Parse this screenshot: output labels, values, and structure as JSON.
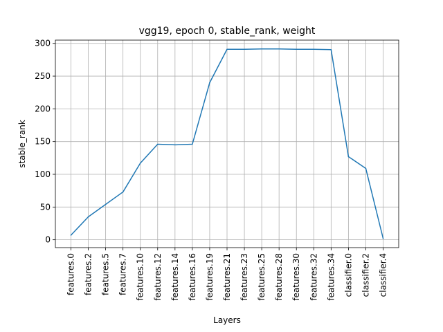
{
  "chart_data": {
    "type": "line",
    "title": "vgg19, epoch 0, stable_rank, weight",
    "xlabel": "Layers",
    "ylabel": "stable_rank",
    "categories": [
      "features.0",
      "features.2",
      "features.5",
      "features.7",
      "features.10",
      "features.12",
      "features.14",
      "features.16",
      "features.19",
      "features.21",
      "features.23",
      "features.25",
      "features.28",
      "features.30",
      "features.32",
      "features.34",
      "classifier.0",
      "classifier.2",
      "classifier.4"
    ],
    "series": [
      {
        "values": [
          7,
          35,
          54,
          73,
          117,
          146,
          145,
          146,
          240,
          291,
          291,
          291.5,
          291.5,
          291,
          291,
          290.5,
          127,
          109,
          2
        ],
        "color": "#1f77b4"
      }
    ],
    "ylim": [
      -12,
      305
    ],
    "yticks": [
      0,
      50,
      100,
      150,
      200,
      250,
      300
    ],
    "grid": true
  }
}
